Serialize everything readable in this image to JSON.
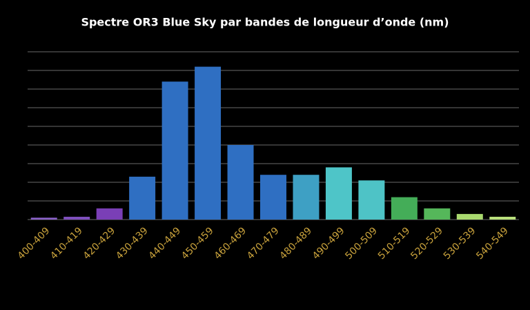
{
  "chart_data": {
    "type": "bar",
    "title": "Spectre OR3 Blue Sky par bandes de longueur d’onde (nm)",
    "categories": [
      "400-409",
      "410-419",
      "420-429",
      "430-439",
      "440-449",
      "450-459",
      "460-469",
      "470-479",
      "480-489",
      "490-499",
      "500-509",
      "510-519",
      "520-529",
      "530-539",
      "540-549"
    ],
    "values": [
      0.1,
      0.15,
      0.6,
      2.3,
      7.4,
      8.2,
      4.0,
      2.4,
      2.4,
      2.8,
      2.1,
      1.2,
      0.6,
      0.3,
      0.15
    ],
    "colors": [
      "#8a62c8",
      "#7e4fbd",
      "#7a3fb6",
      "#2f6fc2",
      "#2f6fc2",
      "#2f6fc2",
      "#2f6fc2",
      "#2f6fc2",
      "#3ea0c4",
      "#4ec5c8",
      "#4ec3c6",
      "#44ad58",
      "#55b75a",
      "#a9d96e",
      "#b9e17c"
    ],
    "ylim": [
      0,
      9
    ],
    "yticks": [
      0,
      1,
      2,
      3,
      4,
      5,
      6,
      7,
      8,
      9
    ],
    "grid": true
  }
}
